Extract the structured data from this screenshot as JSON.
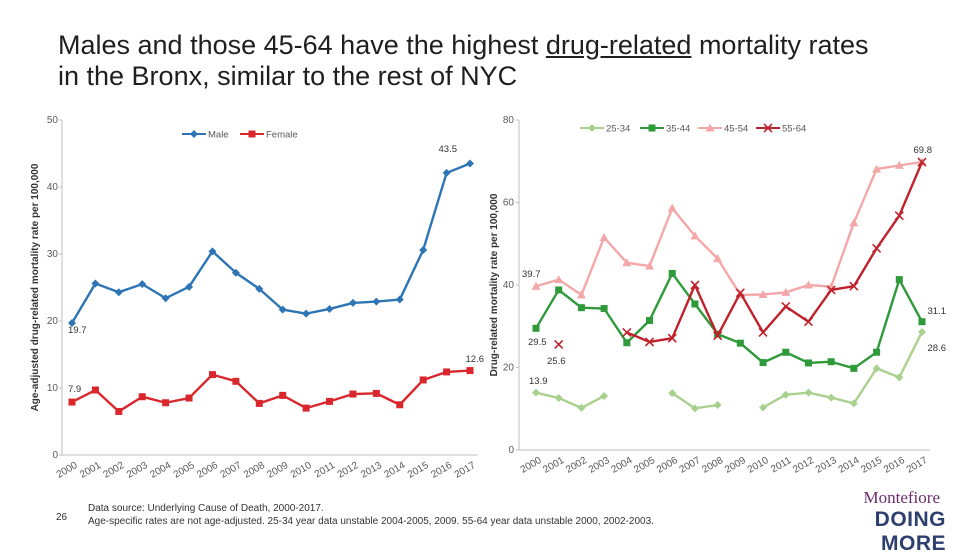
{
  "title": {
    "before": "Males and those 45-64 have the highest ",
    "underlined": "drug-related",
    "after": " mortality rates in the Bronx, similar to the rest of NYC"
  },
  "page_number": "26",
  "footer": {
    "line1": "Data source: Underlying Cause of Death, 2000-2017.",
    "line2": "Age-specific rates are not age-adjusted. 25-34 year data unstable 2004-2005, 2009. 55-64 year data unstable 2000, 2002-2003."
  },
  "logo": {
    "line1": "Montefiore",
    "line2": "DOING MORE"
  },
  "colors": {
    "male": "#2e75b6",
    "female": "#d9272e",
    "age_25_34": "#a9d18e",
    "age_35_44": "#2e9a3a",
    "age_45_54": "#f4a7a9",
    "age_55_64": "#c0222b",
    "axis": "#bfbfbf",
    "text": "#595959"
  },
  "chart_data": [
    {
      "type": "line",
      "ylabel": "Age-adjusted drug-related mortality rate per 100,000",
      "ylim": [
        0,
        50
      ],
      "yticks": [
        "0",
        "10",
        "20",
        "30",
        "40",
        "50"
      ],
      "x": [
        "2000",
        "2001",
        "2002",
        "2003",
        "2004",
        "2005",
        "2006",
        "2007",
        "2008",
        "2009",
        "2010",
        "2011",
        "2012",
        "2013",
        "2014",
        "2015",
        "2016",
        "2017"
      ],
      "legend_position": "top",
      "series": [
        {
          "name": "Male",
          "color_key": "male",
          "marker": "diamond",
          "values": [
            19.7,
            25.6,
            24.3,
            25.5,
            23.4,
            25.1,
            30.4,
            27.2,
            24.8,
            21.7,
            21.1,
            21.8,
            22.7,
            22.9,
            23.2,
            30.6,
            42.1,
            43.5
          ]
        },
        {
          "name": "Female",
          "color_key": "female",
          "marker": "square",
          "values": [
            7.9,
            9.7,
            6.5,
            8.7,
            7.8,
            8.5,
            12.0,
            11.0,
            7.7,
            8.9,
            7.0,
            8.0,
            9.1,
            9.2,
            7.5,
            11.2,
            12.4,
            12.6
          ]
        }
      ],
      "annotations": [
        "19.7",
        "43.5",
        "7.9",
        "12.6"
      ]
    },
    {
      "type": "line",
      "ylabel": "Drug-related mortality rate per 100,000",
      "ylim": [
        0,
        80
      ],
      "yticks": [
        "0",
        "20",
        "40",
        "60",
        "80"
      ],
      "x": [
        "2000",
        "2001",
        "2002",
        "2003",
        "2004",
        "2005",
        "2006",
        "2007",
        "2008",
        "2009",
        "2010",
        "2011",
        "2012",
        "2013",
        "2014",
        "2015",
        "2016",
        "2017"
      ],
      "legend_position": "top",
      "series": [
        {
          "name": "25-34",
          "color_key": "age_25_34",
          "marker": "diamond",
          "values": [
            13.9,
            12.6,
            10.2,
            13.1,
            null,
            null,
            13.8,
            10.1,
            10.9,
            null,
            10.3,
            13.4,
            13.9,
            12.7,
            11.3,
            19.8,
            17.6,
            28.6
          ]
        },
        {
          "name": "35-44",
          "color_key": "age_35_44",
          "marker": "square",
          "values": [
            29.5,
            38.8,
            34.5,
            34.3,
            26.0,
            31.4,
            42.8,
            35.4,
            28.1,
            25.9,
            21.2,
            23.7,
            21.1,
            21.4,
            19.8,
            23.7,
            41.3,
            31.1
          ]
        },
        {
          "name": "45-54",
          "color_key": "age_45_54",
          "marker": "triangle",
          "values": [
            39.7,
            41.3,
            37.6,
            51.5,
            45.4,
            44.6,
            58.6,
            51.9,
            46.4,
            37.6,
            37.7,
            38.2,
            40.0,
            39.6,
            55.1,
            68.1,
            69.0,
            69.8
          ]
        },
        {
          "name": "55-64",
          "color_key": "age_55_64",
          "marker": "x",
          "values": [
            null,
            null,
            null,
            null,
            28.5,
            26.2,
            27.1,
            40.0,
            27.7,
            38.1,
            28.5,
            34.8,
            31.1,
            38.8,
            39.7,
            48.9,
            56.8,
            69.8
          ]
        }
      ],
      "extra_points": [
        {
          "x": "2001",
          "y": 25.6,
          "marker": "x",
          "color_key": "age_55_64"
        }
      ],
      "annotations": [
        "69.8",
        "39.7",
        "29.5",
        "25.6",
        "13.9",
        "31.1",
        "28.6"
      ]
    }
  ]
}
